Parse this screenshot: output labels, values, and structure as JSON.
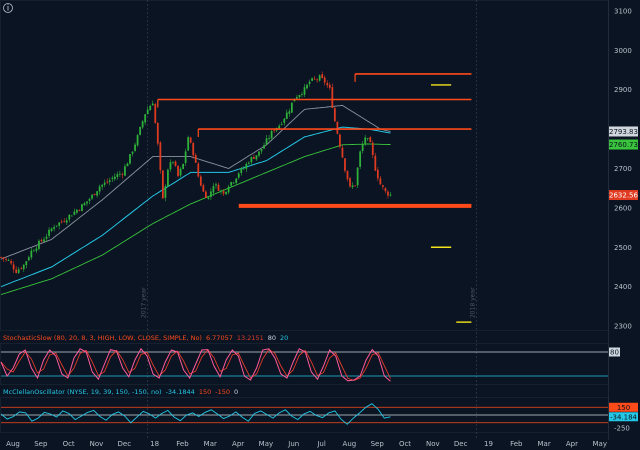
{
  "colors": {
    "background": "#0a1422",
    "axis_text": "#b8c2cc",
    "up_candle": "#2fb23a",
    "down_candle": "#e03a20",
    "support_resistance": "#ff4a1a",
    "target": "#f4e51a",
    "ma_gray": "#8a94a0",
    "ma_cyan": "#25c7e6",
    "ma_green": "#39c43c",
    "oscillator_line": "#ff5a9a",
    "oscillator_line2": "#e03a2a",
    "mcclellan_line": "#25c7e6",
    "band_line": "#cfd8e0",
    "red_band": "#ff4a1a"
  },
  "info_icon": "info-icon",
  "chart_data": [
    {
      "type": "candlestick",
      "name": "price",
      "y_ticks": [
        "3100",
        "3000",
        "2900",
        "2800",
        "2700",
        "2600",
        "2500",
        "2400",
        "2300"
      ],
      "ylim": [
        2290,
        3125
      ],
      "x_ticks": [
        "Aug",
        "Sep",
        "Oct",
        "Nov",
        "Dec",
        "18",
        "Feb",
        "Mar",
        "Apr",
        "May",
        "Jun",
        "Jul",
        "Aug",
        "Sep",
        "Oct",
        "Nov",
        "Dec",
        "19",
        "Feb",
        "Mar",
        "Apr",
        "May"
      ],
      "year_marks": [
        "2017 year",
        "2018 year"
      ],
      "close_path": [
        [
          0,
          2475
        ],
        [
          3,
          2465
        ],
        [
          6,
          2440
        ],
        [
          9,
          2455
        ],
        [
          12,
          2490
        ],
        [
          15,
          2510
        ],
        [
          18,
          2530
        ],
        [
          21,
          2555
        ],
        [
          24,
          2565
        ],
        [
          27,
          2580
        ],
        [
          30,
          2595
        ],
        [
          33,
          2610
        ],
        [
          36,
          2630
        ],
        [
          39,
          2655
        ],
        [
          42,
          2665
        ],
        [
          45,
          2680
        ],
        [
          48,
          2690
        ],
        [
          51,
          2730
        ],
        [
          54,
          2780
        ],
        [
          57,
          2840
        ],
        [
          60,
          2870
        ],
        [
          62,
          2760
        ],
        [
          64,
          2620
        ],
        [
          66,
          2700
        ],
        [
          68,
          2720
        ],
        [
          70,
          2680
        ],
        [
          72,
          2710
        ],
        [
          74,
          2780
        ],
        [
          76,
          2740
        ],
        [
          78,
          2680
        ],
        [
          80,
          2640
        ],
        [
          82,
          2625
        ],
        [
          84,
          2660
        ],
        [
          86,
          2650
        ],
        [
          88,
          2635
        ],
        [
          90,
          2660
        ],
        [
          92,
          2670
        ],
        [
          94,
          2690
        ],
        [
          96,
          2700
        ],
        [
          98,
          2720
        ],
        [
          100,
          2730
        ],
        [
          102,
          2740
        ],
        [
          104,
          2760
        ],
        [
          106,
          2780
        ],
        [
          108,
          2800
        ],
        [
          110,
          2810
        ],
        [
          112,
          2830
        ],
        [
          114,
          2850
        ],
        [
          116,
          2880
        ],
        [
          118,
          2890
        ],
        [
          120,
          2900
        ],
        [
          122,
          2920
        ],
        [
          124,
          2925
        ],
        [
          126,
          2930
        ],
        [
          128,
          2920
        ],
        [
          130,
          2900
        ],
        [
          132,
          2820
        ],
        [
          134,
          2760
        ],
        [
          136,
          2700
        ],
        [
          138,
          2650
        ],
        [
          140,
          2660
        ],
        [
          142,
          2740
        ],
        [
          144,
          2780
        ],
        [
          146,
          2760
        ],
        [
          148,
          2700
        ],
        [
          150,
          2660
        ],
        [
          152,
          2640
        ],
        [
          154,
          2633
        ]
      ],
      "last_index": 154,
      "x_span": 240,
      "ma_gray": [
        [
          0,
          2470
        ],
        [
          20,
          2520
        ],
        [
          40,
          2620
        ],
        [
          60,
          2730
        ],
        [
          75,
          2730
        ],
        [
          90,
          2700
        ],
        [
          105,
          2760
        ],
        [
          120,
          2850
        ],
        [
          135,
          2860
        ],
        [
          150,
          2800
        ],
        [
          154,
          2793.83
        ]
      ],
      "ma_cyan": [
        [
          0,
          2400
        ],
        [
          20,
          2450
        ],
        [
          40,
          2530
        ],
        [
          60,
          2630
        ],
        [
          75,
          2690
        ],
        [
          90,
          2690
        ],
        [
          105,
          2720
        ],
        [
          120,
          2780
        ],
        [
          135,
          2805
        ],
        [
          145,
          2800
        ],
        [
          154,
          2790
        ]
      ],
      "ma_green": [
        [
          0,
          2380
        ],
        [
          20,
          2420
        ],
        [
          40,
          2480
        ],
        [
          60,
          2560
        ],
        [
          75,
          2610
        ],
        [
          90,
          2650
        ],
        [
          105,
          2690
        ],
        [
          120,
          2730
        ],
        [
          135,
          2760
        ],
        [
          145,
          2762
        ],
        [
          154,
          2760.73
        ]
      ],
      "levels": [
        {
          "kind": "resistance",
          "y": 2940,
          "x0": 140,
          "x1": 186
        },
        {
          "kind": "resistance",
          "y": 2875,
          "x0": 62,
          "x1": 186
        },
        {
          "kind": "resistance",
          "y": 2800,
          "x0": 78,
          "x1": 186
        },
        {
          "kind": "support",
          "y": 2605,
          "x0": 94,
          "x1": 186,
          "thick": true
        },
        {
          "kind": "target",
          "y": 2912,
          "x0": 170,
          "x1": 178
        },
        {
          "kind": "target",
          "y": 2500,
          "x0": 170,
          "x1": 178
        },
        {
          "kind": "target",
          "y": 2310,
          "x0": 180,
          "x1": 186
        }
      ],
      "price_labels": [
        {
          "value": "2793.83",
          "y": 2793.83,
          "color": "#d0d6dc",
          "text_color": "#0a1422"
        },
        {
          "value": "2760.73",
          "y": 2760.73,
          "color": "#39c43c",
          "text_color": "#0a1422"
        },
        {
          "value": "2632.56",
          "y": 2632.56,
          "color": "#e03a20",
          "text_color": "#ffffff"
        }
      ]
    },
    {
      "type": "line",
      "name": "stochastic",
      "title_parts": [
        {
          "text": "StochasticSlow (80, 20, 8, 3, HIGH, LOW, CLOSE, SIMPLE, No)",
          "color": "#ff4a1a"
        },
        {
          "text": "6.77057",
          "color": "#ff4a1a"
        },
        {
          "text": "13.2151",
          "color": "#e03a2a"
        },
        {
          "text": "80",
          "color": "#cfd8e0"
        },
        {
          "text": "20",
          "color": "#25c7e6"
        }
      ],
      "ylim": [
        0,
        100
      ],
      "bands": [
        80,
        20
      ],
      "right_label": {
        "value": "80",
        "y": 80
      },
      "values_k": [
        55,
        20,
        40,
        75,
        85,
        40,
        15,
        60,
        85,
        70,
        25,
        15,
        65,
        88,
        80,
        30,
        12,
        50,
        86,
        82,
        40,
        18,
        60,
        88,
        70,
        25,
        15,
        55,
        85,
        80,
        35,
        15,
        50,
        85,
        86,
        45,
        18,
        60,
        85,
        70,
        20,
        10,
        40,
        85,
        88,
        65,
        25,
        15,
        55,
        88,
        80,
        30,
        12,
        45,
        85,
        70,
        20,
        8,
        10,
        20,
        60,
        86,
        70,
        20,
        7
      ]
    },
    {
      "type": "line",
      "name": "mcclellan",
      "title_parts": [
        {
          "text": "McClellanOscillator (NYSE, 19, 39, 150, -150, no)",
          "color": "#25c7e6"
        },
        {
          "text": "-34.1844",
          "color": "#25c7e6"
        },
        {
          "text": "150",
          "color": "#ff4a1a"
        },
        {
          "text": "-150",
          "color": "#ff4a1a"
        },
        {
          "text": "0",
          "color": "#cfd8e0"
        }
      ],
      "ylim": [
        -330,
        330
      ],
      "bands": [
        150,
        0,
        -150
      ],
      "right_labels": [
        {
          "value": "150",
          "y": 150,
          "color": "#ff4a1a"
        },
        {
          "value": "-34.184",
          "y": -34.184,
          "color": "#25c7e6"
        },
        {
          "value": "-250",
          "y": -250,
          "color": "#b8c2cc"
        }
      ],
      "values": [
        20,
        -80,
        -30,
        60,
        40,
        -120,
        -60,
        50,
        20,
        -40,
        80,
        30,
        -90,
        -20,
        50,
        90,
        -30,
        -100,
        10,
        60,
        -20,
        -150,
        -40,
        70,
        20,
        -60,
        30,
        90,
        -40,
        -110,
        0,
        40,
        -30,
        50,
        100,
        20,
        -70,
        -20,
        60,
        -40,
        -120,
        30,
        80,
        10,
        -60,
        40,
        100,
        -20,
        -90,
        20,
        70,
        -10,
        -50,
        40,
        80,
        -80,
        -180,
        -60,
        40,
        150,
        220,
        110,
        -60,
        -34
      ]
    }
  ]
}
